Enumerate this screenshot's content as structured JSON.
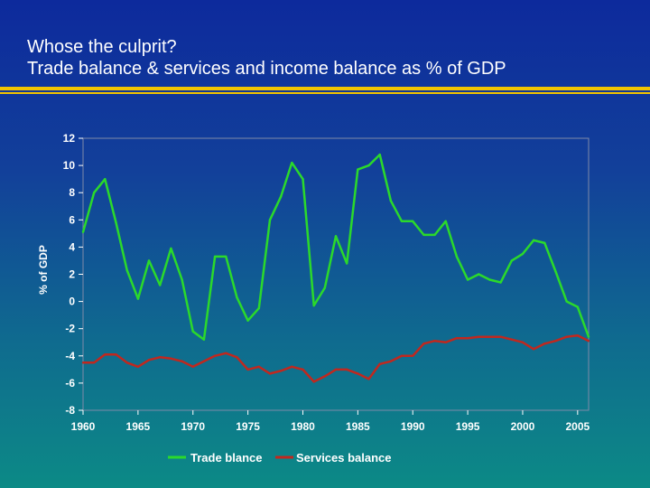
{
  "slide": {
    "title_line1": "Whose the culprit?",
    "title_line2": "Trade balance & services and income balance as % of GDP",
    "accent_color": "#f2c400"
  },
  "chart_data": {
    "type": "line",
    "ylabel": "% of GDP",
    "xlabel": "",
    "ylim": [
      -8,
      12
    ],
    "yticks": [
      12,
      10,
      8,
      6,
      4,
      2,
      0,
      -2,
      -4,
      -6,
      -8
    ],
    "xlim": [
      1960,
      2006
    ],
    "xticks": [
      1960,
      1965,
      1970,
      1975,
      1980,
      1985,
      1990,
      1995,
      2000,
      2005
    ],
    "grid": false,
    "legend_position": "bottom",
    "x": [
      1960,
      1961,
      1962,
      1963,
      1964,
      1965,
      1966,
      1967,
      1968,
      1969,
      1970,
      1971,
      1972,
      1973,
      1974,
      1975,
      1976,
      1977,
      1978,
      1979,
      1980,
      1981,
      1982,
      1983,
      1984,
      1985,
      1986,
      1987,
      1988,
      1989,
      1990,
      1991,
      1992,
      1993,
      1994,
      1995,
      1996,
      1997,
      1998,
      1999,
      2000,
      2001,
      2002,
      2003,
      2004,
      2005,
      2006
    ],
    "series": [
      {
        "name": "Trade blance",
        "color": "#2bd92b",
        "values": [
          5.1,
          8.0,
          9.0,
          5.8,
          2.3,
          0.2,
          3.0,
          1.2,
          3.9,
          1.6,
          -2.2,
          -2.8,
          3.3,
          3.3,
          0.3,
          -1.4,
          -0.5,
          6.0,
          7.7,
          10.2,
          9.0,
          -0.3,
          1.0,
          4.8,
          2.8,
          9.7,
          10.0,
          10.8,
          7.4,
          5.9,
          5.9,
          4.9,
          4.9,
          5.9,
          3.3,
          1.6,
          2.0,
          1.6,
          1.4,
          3.0,
          3.5,
          4.5,
          4.3,
          2.2,
          0.0,
          -0.4,
          -2.6
        ]
      },
      {
        "name": "Services balance",
        "color": "#c0281f",
        "values": [
          -4.5,
          -4.5,
          -3.9,
          -3.9,
          -4.5,
          -4.8,
          -4.3,
          -4.1,
          -4.2,
          -4.4,
          -4.8,
          -4.4,
          -4.0,
          -3.8,
          -4.1,
          -5.0,
          -4.8,
          -5.3,
          -5.1,
          -4.8,
          -5.0,
          -5.9,
          -5.5,
          -5.0,
          -5.0,
          -5.3,
          -5.7,
          -4.6,
          -4.4,
          -4.0,
          -4.0,
          -3.1,
          -2.9,
          -3.0,
          -2.7,
          -2.7,
          -2.6,
          -2.6,
          -2.6,
          -2.8,
          -3.0,
          -3.5,
          -3.1,
          -2.9,
          -2.6,
          -2.5,
          -2.9
        ]
      }
    ]
  }
}
